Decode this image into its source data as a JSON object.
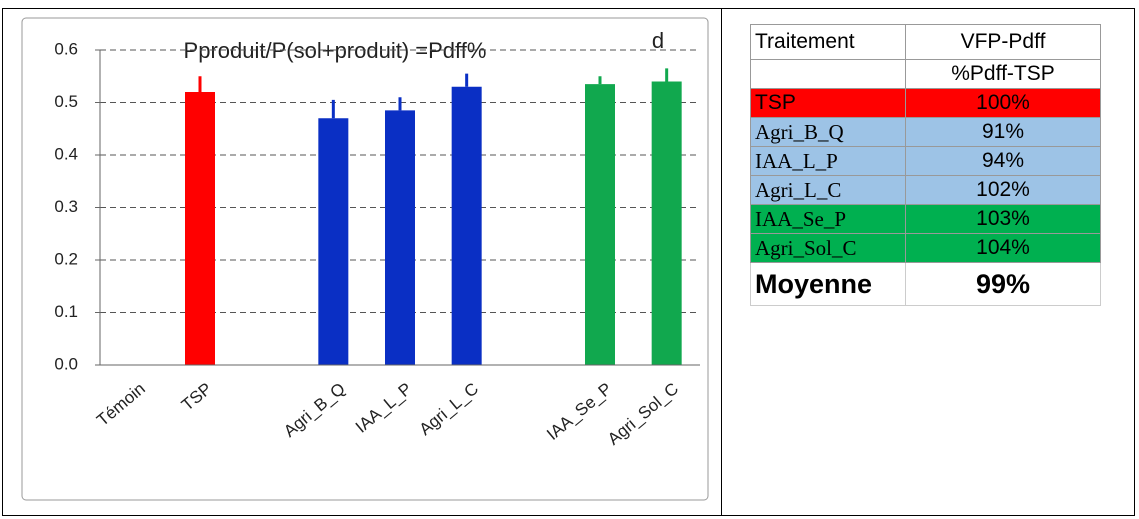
{
  "chart_data": {
    "type": "bar",
    "title": "Pproduit/P(sol+produit) =Pdff%",
    "annotation": "d",
    "categories": [
      "Témoin",
      "TSP",
      null,
      "Agri_B_Q",
      "IAA_L_P",
      "Agri_L_C",
      null,
      "IAA_Se_P",
      "Agri_Sol_C"
    ],
    "values": [
      null,
      0.52,
      null,
      0.47,
      0.485,
      0.53,
      null,
      0.535,
      0.54
    ],
    "errors": [
      null,
      0.03,
      null,
      0.035,
      0.025,
      0.025,
      null,
      0.015,
      0.025
    ],
    "colors": [
      null,
      "#ff0000",
      null,
      "#0a2fc4",
      "#0a2fc4",
      "#0a2fc4",
      null,
      "#11a84e",
      "#11a84e"
    ],
    "ylim": [
      0,
      0.6
    ],
    "yticks": [
      {
        "value": 0,
        "label": "0.0"
      },
      0.1,
      0.2,
      0.3,
      0.4,
      0.5,
      0.6
    ],
    "grid": true
  },
  "table": {
    "header": [
      "Traitement",
      "VFP-Pdff"
    ],
    "subheader": "%Pdff-TSP",
    "rows": [
      [
        "TSP",
        "100%"
      ],
      [
        "Agri_B_Q",
        "91%"
      ],
      [
        "IAA_L_P",
        "94%"
      ],
      [
        "Agri_L_C",
        "102%"
      ],
      [
        "IAA_Se_P",
        "103%"
      ],
      [
        "Agri_Sol_C",
        "104%"
      ]
    ],
    "row_colors": [
      "#ff0000",
      "#9dc3e6",
      "#9dc3e6",
      "#9dc3e6",
      "#00b050",
      "#00b050"
    ],
    "footer": [
      "Moyenne",
      "99%"
    ]
  }
}
